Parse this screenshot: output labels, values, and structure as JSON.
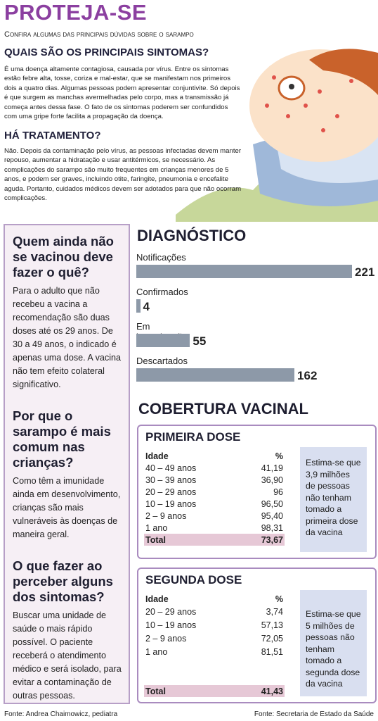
{
  "header": {
    "title": "PROTEJA-SE",
    "subtitle": "Confira algumas das principais dúvidas sobre o sarampo"
  },
  "sections": [
    {
      "heading": "QUAIS SÃO OS PRINCIPAIS SINTOMAS?",
      "text": "É uma doença altamente contagiosa, causada por vírus. Entre os sintomas estão febre alta, tosse, coriza e mal-estar, que se manifestam nos primeiros dois a quatro dias. Algumas pessoas podem apresentar conjuntivite. Só depois é que surgem as manchas avermelhadas pelo corpo, mas a transmissão já começa antes dessa fase. O fato de os sintomas poderem ser confundidos com uma gripe forte facilita a propagação da doença."
    },
    {
      "heading": "HÁ TRATAMENTO?",
      "text": "Não. Depois da contaminação pelo vírus, as pessoas infectadas devem manter repouso, aumentar a hidratação e usar antitérmicos, se necessário. As complicações do sarampo são muito frequentes em crianças menores de 5 anos, e podem ser graves, incluindo otite, faringite, pneumonia e encefalite aguda. Portanto, cuidados médicos devem ser adotados para que não ocorram complicações."
    }
  ],
  "faq": [
    {
      "question": "Quem ainda não se vacinou deve fazer o quê?",
      "answer": "Para o adulto que não recebeu a vacina a recomendação são duas doses até os 29 anos. De 30 a 49 anos, o indicado é apenas uma dose. A vacina não tem efeito colateral significativo."
    },
    {
      "question": "Por que o sarampo é mais comum nas crianças?",
      "answer": "Como têm a imunidade ainda em desenvolvimento, crianças são mais vulneráveis às doenças de maneira geral."
    },
    {
      "question": "O que fazer ao perceber alguns dos sintomas?",
      "answer": "Buscar uma unidade de saúde o mais rápido possível. O paciente receberá o atendimento médico e será isolado, para evitar a contaminação de outras pessoas."
    }
  ],
  "chart_data": {
    "type": "bar",
    "title": "DIAGNÓSTICO",
    "categories": [
      "Notificações",
      "Confirmados",
      "Em investigação",
      "Descartados"
    ],
    "values": [
      221,
      4,
      55,
      162
    ],
    "color": "#8d99a8"
  },
  "coverage": {
    "title": "COBERTURA VACINAL",
    "tables": [
      {
        "title": "PRIMEIRA DOSE",
        "header": [
          "Idade",
          "%"
        ],
        "rows": [
          [
            "40 – 49 anos",
            "41,19"
          ],
          [
            "30 – 39 anos",
            "36,90"
          ],
          [
            "20 – 29 anos",
            "96"
          ],
          [
            "10 – 19 anos",
            "96,50"
          ],
          [
            "2 – 9 anos",
            "95,40"
          ],
          [
            "1 ano",
            "98,31"
          ]
        ],
        "total": [
          "Total",
          "73,67"
        ],
        "note": "Estima-se que 3,9 milhões de pessoas não tenham tomado a primeira dose da vacina"
      },
      {
        "title": "SEGUNDA DOSE",
        "header": [
          "Idade",
          "%"
        ],
        "rows": [
          [
            "20 – 29 anos",
            "3,74"
          ],
          [
            "10 – 19 anos",
            "57,13"
          ],
          [
            "2 – 9 anos",
            "72,05"
          ],
          [
            "1 ano",
            "81,51"
          ]
        ],
        "total": [
          "Total",
          "41,43"
        ],
        "note": "Estima-se que 5 milhões de pessoas não tenham tomado a segunda dose da vacina"
      }
    ]
  },
  "footer": {
    "left": "Fonte: Andrea Chaimowicz, pediatra",
    "right": "Fonte: Secretaria de Estado da Saúde"
  }
}
